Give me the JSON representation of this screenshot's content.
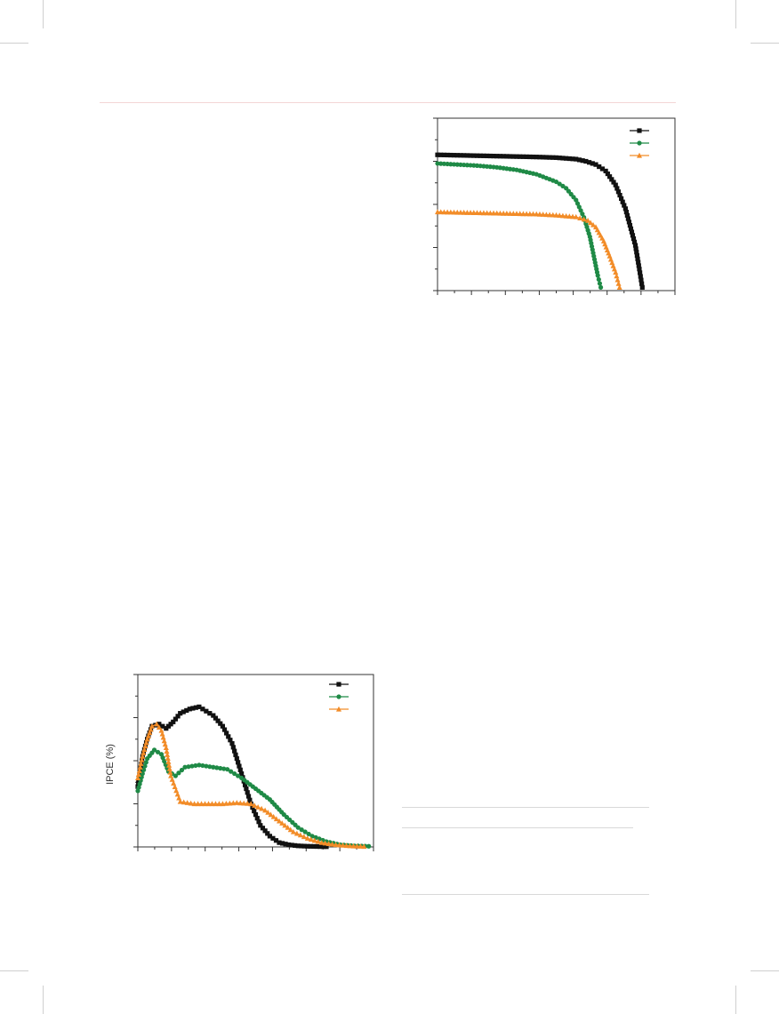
{
  "page": {
    "header_rule_color": "#f3d6d6",
    "table_rule_color": "#d9d9d9"
  },
  "chart_data": [
    {
      "id": "jv",
      "type": "scatter",
      "title": "",
      "xlabel": "",
      "ylabel": "",
      "xlim": [
        0,
        1.2
      ],
      "ylim": [
        0,
        8
      ],
      "grid": false,
      "legend": {
        "placement": "top-right",
        "entries": [
          "",
          "",
          ""
        ]
      },
      "series": [
        {
          "color": "#111111",
          "marker": "square",
          "x": [
            0,
            0.1,
            0.2,
            0.3,
            0.4,
            0.5,
            0.6,
            0.7,
            0.75,
            0.8,
            0.85,
            0.9,
            0.95,
            1.0,
            1.02,
            1.035
          ],
          "y": [
            6.3,
            6.28,
            6.26,
            6.24,
            6.22,
            6.2,
            6.17,
            6.1,
            6.0,
            5.85,
            5.55,
            4.9,
            3.8,
            2.1,
            1.0,
            0.15
          ]
        },
        {
          "color": "#1f8a46",
          "marker": "circle",
          "x": [
            0,
            0.1,
            0.2,
            0.3,
            0.4,
            0.5,
            0.6,
            0.65,
            0.7,
            0.74,
            0.77,
            0.79,
            0.81,
            0.825
          ],
          "y": [
            5.9,
            5.85,
            5.8,
            5.72,
            5.6,
            5.4,
            5.05,
            4.75,
            4.2,
            3.4,
            2.5,
            1.6,
            0.7,
            0.15
          ]
        },
        {
          "color": "#f28c28",
          "marker": "triangle",
          "x": [
            0,
            0.1,
            0.2,
            0.3,
            0.4,
            0.5,
            0.6,
            0.7,
            0.76,
            0.8,
            0.84,
            0.87,
            0.9,
            0.92
          ],
          "y": [
            3.65,
            3.63,
            3.61,
            3.59,
            3.57,
            3.55,
            3.5,
            3.42,
            3.25,
            2.95,
            2.3,
            1.6,
            0.85,
            0.15
          ]
        }
      ]
    },
    {
      "id": "ipce",
      "type": "scatter",
      "title": "",
      "xlabel": "",
      "ylabel": "IPCE (%)",
      "xlim": [
        300,
        800
      ],
      "ylim": [
        0,
        80
      ],
      "grid": false,
      "legend": {
        "placement": "top-right",
        "entries": [
          "",
          "",
          ""
        ]
      },
      "series": [
        {
          "color": "#111111",
          "marker": "square",
          "x": [
            300,
            310,
            320,
            330,
            345,
            360,
            375,
            390,
            410,
            430,
            460,
            480,
            500,
            520,
            540,
            560,
            580,
            600,
            620,
            640,
            660,
            680,
            700
          ],
          "y": [
            28,
            42,
            50,
            56,
            57,
            55,
            58,
            62,
            64,
            65,
            61,
            56,
            48,
            34,
            20,
            10,
            5,
            2,
            1,
            0.5,
            0.3,
            0.2,
            0.1
          ]
        },
        {
          "color": "#1f8a46",
          "marker": "circle",
          "x": [
            300,
            310,
            320,
            335,
            350,
            365,
            380,
            400,
            430,
            460,
            490,
            520,
            550,
            580,
            610,
            640,
            670,
            700,
            730,
            760,
            790
          ],
          "y": [
            26,
            34,
            41,
            45,
            43,
            35,
            33,
            37,
            38,
            37,
            36,
            32,
            27,
            22,
            15,
            9,
            5,
            2.5,
            1,
            0.5,
            0.3
          ]
        },
        {
          "color": "#f28c28",
          "marker": "triangle",
          "x": [
            300,
            310,
            320,
            330,
            340,
            350,
            360,
            370,
            390,
            420,
            450,
            480,
            510,
            540,
            570,
            600,
            630,
            660,
            690,
            720,
            750,
            780
          ],
          "y": [
            32,
            42,
            50,
            56,
            57,
            54,
            46,
            33,
            21,
            20,
            20,
            20,
            20.5,
            20,
            17,
            12,
            7,
            4,
            2,
            1,
            0.5,
            0.2
          ]
        }
      ]
    }
  ]
}
